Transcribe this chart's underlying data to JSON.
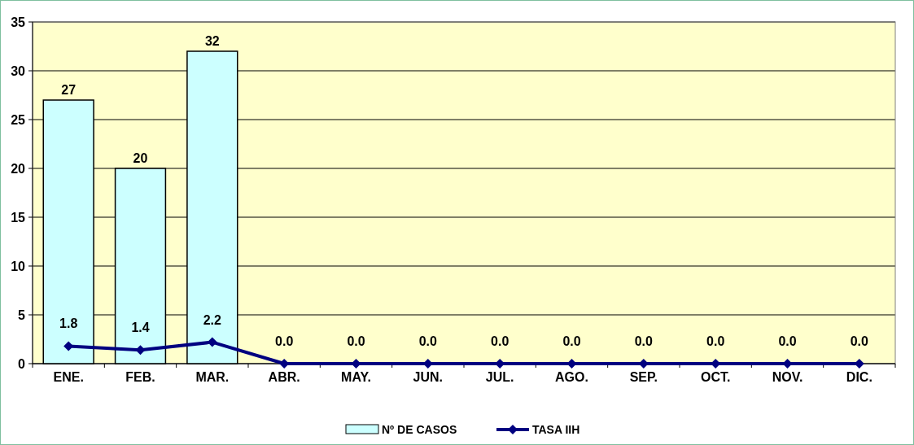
{
  "chart_data": {
    "type": "bar",
    "categories": [
      "ENE.",
      "FEB.",
      "MAR.",
      "ABR.",
      "MAY.",
      "JUN.",
      "JUL.",
      "AGO.",
      "SEP.",
      "OCT.",
      "NOV.",
      "DIC."
    ],
    "series": [
      {
        "name": "Nº DE CASOS",
        "color": "#ccffff",
        "values": [
          27,
          20,
          32,
          null,
          null,
          null,
          null,
          null,
          null,
          null,
          null,
          null
        ],
        "value_labels": [
          "27",
          "20",
          "32",
          null,
          null,
          null,
          null,
          null,
          null,
          null,
          null,
          null
        ]
      },
      {
        "name": "TASA IIH",
        "type": "line",
        "color": "#000080",
        "marker": "diamond",
        "values": [
          1.8,
          1.4,
          2.2,
          0,
          0,
          0,
          0,
          0,
          0,
          0,
          0,
          0
        ],
        "value_labels": [
          "1.8",
          "1.4",
          "2.2",
          "0.0",
          "0.0",
          "0.0",
          "0.0",
          "0.0",
          "0.0",
          "0.0",
          "0.0",
          "0.0"
        ]
      }
    ],
    "ylim": [
      0,
      35
    ],
    "yticks": [
      0,
      5,
      10,
      15,
      20,
      25,
      30,
      35
    ],
    "grid": "y",
    "legend": "bottom"
  }
}
